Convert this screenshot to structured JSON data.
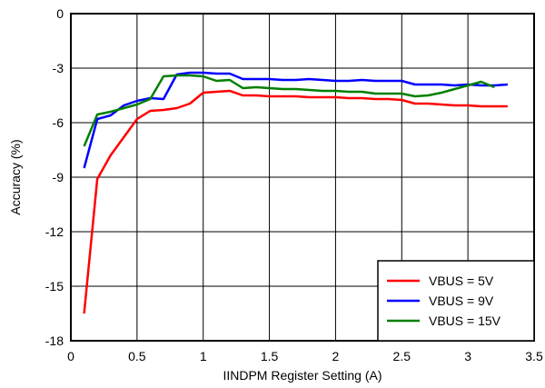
{
  "chart_data": {
    "type": "line",
    "xlabel": "IINDPM Register Setting (A)",
    "ylabel": "Accuracy (%)",
    "xlim": [
      0,
      3.5
    ],
    "ylim": [
      -18,
      0
    ],
    "xticks": [
      0,
      0.5,
      1,
      1.5,
      2,
      2.5,
      3,
      3.5
    ],
    "xtick_labels": [
      "0",
      "0.5",
      "1",
      "1.5",
      "2",
      "2.5",
      "3",
      "3.5"
    ],
    "yticks": [
      0,
      -3,
      -6,
      -9,
      -12,
      -15,
      -18
    ],
    "ytick_labels": [
      "0",
      "-3",
      "-6",
      "-9",
      "-12",
      "-15",
      "-18"
    ],
    "grid": true,
    "legend_position": "bottom-right",
    "series": [
      {
        "name": "VBUS = 5V",
        "color": "#ff0000",
        "points": [
          [
            0.1,
            -16.5
          ],
          [
            0.2,
            -9.1
          ],
          [
            0.3,
            -7.8
          ],
          [
            0.4,
            -6.8
          ],
          [
            0.5,
            -5.8
          ],
          [
            0.6,
            -5.35
          ],
          [
            0.7,
            -5.3
          ],
          [
            0.8,
            -5.2
          ],
          [
            0.9,
            -4.95
          ],
          [
            1.0,
            -4.35
          ],
          [
            1.1,
            -4.3
          ],
          [
            1.2,
            -4.25
          ],
          [
            1.3,
            -4.5
          ],
          [
            1.4,
            -4.5
          ],
          [
            1.5,
            -4.55
          ],
          [
            1.6,
            -4.55
          ],
          [
            1.7,
            -4.55
          ],
          [
            1.8,
            -4.6
          ],
          [
            1.9,
            -4.6
          ],
          [
            2.0,
            -4.6
          ],
          [
            2.1,
            -4.65
          ],
          [
            2.2,
            -4.65
          ],
          [
            2.3,
            -4.7
          ],
          [
            2.4,
            -4.7
          ],
          [
            2.5,
            -4.75
          ],
          [
            2.6,
            -4.95
          ],
          [
            2.7,
            -4.95
          ],
          [
            2.8,
            -5.0
          ],
          [
            2.9,
            -5.05
          ],
          [
            3.0,
            -5.05
          ],
          [
            3.1,
            -5.1
          ],
          [
            3.2,
            -5.1
          ],
          [
            3.3,
            -5.1
          ]
        ]
      },
      {
        "name": "VBUS = 9V",
        "color": "#0000ff",
        "points": [
          [
            0.1,
            -8.5
          ],
          [
            0.2,
            -5.8
          ],
          [
            0.3,
            -5.6
          ],
          [
            0.4,
            -5.05
          ],
          [
            0.5,
            -4.8
          ],
          [
            0.6,
            -4.65
          ],
          [
            0.7,
            -4.7
          ],
          [
            0.8,
            -3.35
          ],
          [
            0.9,
            -3.25
          ],
          [
            1.0,
            -3.25
          ],
          [
            1.1,
            -3.3
          ],
          [
            1.2,
            -3.3
          ],
          [
            1.3,
            -3.6
          ],
          [
            1.4,
            -3.6
          ],
          [
            1.5,
            -3.6
          ],
          [
            1.6,
            -3.65
          ],
          [
            1.7,
            -3.65
          ],
          [
            1.8,
            -3.6
          ],
          [
            1.9,
            -3.65
          ],
          [
            2.0,
            -3.7
          ],
          [
            2.1,
            -3.7
          ],
          [
            2.2,
            -3.65
          ],
          [
            2.3,
            -3.7
          ],
          [
            2.4,
            -3.7
          ],
          [
            2.5,
            -3.7
          ],
          [
            2.6,
            -3.9
          ],
          [
            2.7,
            -3.9
          ],
          [
            2.8,
            -3.9
          ],
          [
            2.9,
            -3.95
          ],
          [
            3.0,
            -3.9
          ],
          [
            3.1,
            -3.95
          ],
          [
            3.2,
            -3.95
          ],
          [
            3.3,
            -3.9
          ]
        ]
      },
      {
        "name": "VBUS = 15V",
        "color": "#008000",
        "points": [
          [
            0.1,
            -7.3
          ],
          [
            0.2,
            -5.55
          ],
          [
            0.3,
            -5.4
          ],
          [
            0.4,
            -5.2
          ],
          [
            0.5,
            -5.0
          ],
          [
            0.6,
            -4.7
          ],
          [
            0.7,
            -3.45
          ],
          [
            0.8,
            -3.4
          ],
          [
            0.9,
            -3.4
          ],
          [
            1.0,
            -3.45
          ],
          [
            1.1,
            -3.7
          ],
          [
            1.2,
            -3.65
          ],
          [
            1.3,
            -4.1
          ],
          [
            1.4,
            -4.05
          ],
          [
            1.5,
            -4.1
          ],
          [
            1.6,
            -4.15
          ],
          [
            1.7,
            -4.15
          ],
          [
            1.8,
            -4.2
          ],
          [
            1.9,
            -4.25
          ],
          [
            2.0,
            -4.25
          ],
          [
            2.1,
            -4.3
          ],
          [
            2.2,
            -4.3
          ],
          [
            2.3,
            -4.4
          ],
          [
            2.4,
            -4.4
          ],
          [
            2.5,
            -4.4
          ],
          [
            2.6,
            -4.55
          ],
          [
            2.7,
            -4.5
          ],
          [
            2.8,
            -4.35
          ],
          [
            2.9,
            -4.15
          ],
          [
            3.0,
            -3.95
          ],
          [
            3.1,
            -3.75
          ],
          [
            3.2,
            -4.05
          ]
        ]
      }
    ]
  }
}
